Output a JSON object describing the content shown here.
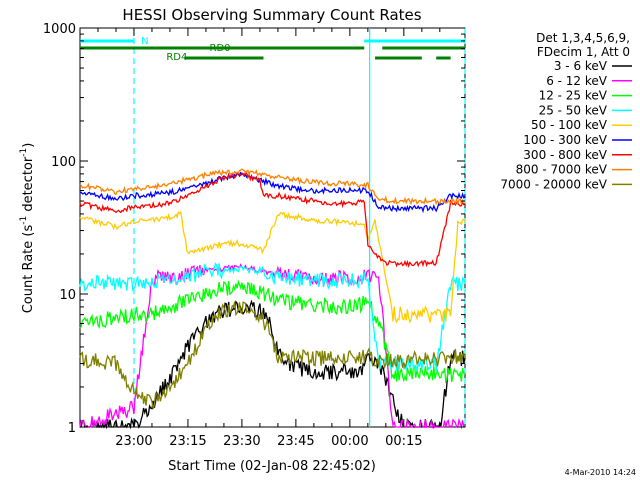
{
  "chart_data": {
    "type": "line",
    "title": "HESSI Observing Summary Count Rates",
    "xlabel": "Start Time (02-Jan-08 22:45:02)",
    "ylabel_main": "Count Rate (s",
    "ylabel_sup1": "-1",
    "ylabel_mid": " detector",
    "ylabel_sup2": "-1",
    "ylabel_end": ")",
    "yscale": "log",
    "ylim": [
      1,
      1000
    ],
    "y_ticks": [
      {
        "value": 1,
        "label": "1"
      },
      {
        "value": 10,
        "label": "10"
      },
      {
        "value": 100,
        "label": "100"
      },
      {
        "value": 1000,
        "label": "1000"
      }
    ],
    "x_range_minutes": [
      -15,
      92
    ],
    "x_ticks": [
      {
        "minute": 0,
        "label": "23:00"
      },
      {
        "minute": 15,
        "label": "23:15"
      },
      {
        "minute": 30,
        "label": "23:30"
      },
      {
        "minute": 45,
        "label": "23:45"
      },
      {
        "minute": 60,
        "label": "00:00"
      },
      {
        "minute": 75,
        "label": "00:15"
      }
    ],
    "legend_header": [
      "Det 1,3,4,5,6,9,",
      "FDecim 1, Att 0"
    ],
    "legend_position": "top-right",
    "annotations": [
      {
        "text": "N",
        "minute": 2,
        "color": "#00ffff"
      },
      {
        "text": "RD0",
        "minute": 21,
        "color": "#008000"
      },
      {
        "text": "RD4",
        "minute": 9,
        "color": "#008000"
      }
    ],
    "footer_date": "4-Mar-2010 14:24",
    "flag_bars": [
      {
        "name": "N",
        "color": "#00ffff",
        "y": 41,
        "segments": [
          [
            -15,
            0
          ],
          [
            64,
            92
          ]
        ]
      },
      {
        "name": "RD0",
        "color": "#008000",
        "y": 48,
        "segments": [
          [
            -15,
            64
          ],
          [
            69,
            92
          ]
        ]
      },
      {
        "name": "RD4",
        "color": "#008000",
        "y": 58,
        "segments": [
          [
            14,
            36
          ]
        ]
      },
      {
        "name": "RD4-late",
        "color": "#008000",
        "y": 58,
        "segments": [
          [
            67,
            80
          ],
          [
            84,
            88
          ]
        ]
      }
    ],
    "vertical_markers": [
      {
        "name": "night-start",
        "minute": 0,
        "color": "#00ffff",
        "style": "dashed"
      },
      {
        "name": "night-end",
        "minute": 65.5,
        "color": "#00ffff",
        "style": "solid"
      },
      {
        "name": "saa",
        "minute": 92,
        "color": "#00ffff",
        "style": "dashed"
      }
    ],
    "series": [
      {
        "name": "3 - 6 keV",
        "color": "#000000",
        "x": [
          -15,
          0,
          5,
          10,
          12,
          15,
          20,
          25,
          30,
          35,
          38,
          40,
          45,
          50,
          55,
          60,
          63,
          65,
          68,
          75,
          80,
          85,
          88,
          92
        ],
        "values": [
          1,
          1,
          1.5,
          2.3,
          3,
          4,
          6,
          7.5,
          8,
          7.5,
          6,
          3.5,
          2.8,
          2.6,
          2.6,
          2.6,
          2.7,
          3.2,
          3.0,
          1,
          1,
          1,
          3.3,
          3.3
        ]
      },
      {
        "name": "6 - 12 keV",
        "color": "#ff00ff",
        "x": [
          -15,
          0,
          5,
          10,
          15,
          20,
          25,
          30,
          35,
          40,
          45,
          50,
          55,
          60,
          64,
          65,
          68,
          72,
          80,
          84,
          88,
          92
        ],
        "values": [
          1,
          1.4,
          13,
          13.5,
          14,
          15,
          15.5,
          16,
          15,
          14,
          13.5,
          13,
          13,
          13,
          13.5,
          14,
          14,
          1,
          1,
          1,
          1,
          1
        ]
      },
      {
        "name": "12 - 25 keV",
        "color": "#00ff00",
        "x": [
          -15,
          0,
          5,
          10,
          15,
          20,
          25,
          30,
          35,
          40,
          45,
          50,
          55,
          60,
          64,
          65,
          68,
          72,
          80,
          84,
          88,
          92
        ],
        "values": [
          6,
          7,
          7,
          8,
          9,
          10,
          11,
          11.5,
          10.5,
          9,
          8.5,
          8.5,
          8,
          8,
          8.5,
          8.5,
          6.5,
          2.5,
          2.5,
          2.5,
          2.5,
          2.5
        ]
      },
      {
        "name": "25 - 50 keV",
        "color": "#00ffff",
        "x": [
          -15,
          0,
          5,
          10,
          15,
          20,
          25,
          30,
          35,
          40,
          45,
          50,
          55,
          60,
          64,
          65,
          68,
          72,
          80,
          84,
          88,
          92
        ],
        "values": [
          12,
          12,
          12.5,
          13,
          13.5,
          14.5,
          15,
          15.5,
          14.5,
          13.5,
          13,
          13,
          12.5,
          12.5,
          13,
          13,
          3,
          3,
          3,
          3,
          12,
          12
        ]
      },
      {
        "name": "50 - 100 keV",
        "color": "#ffcc00",
        "x": [
          -15,
          -5,
          0,
          5,
          10,
          13,
          15,
          20,
          25,
          30,
          35,
          36,
          40,
          45,
          50,
          55,
          60,
          64,
          65,
          67,
          72,
          80,
          84,
          88,
          90,
          92
        ],
        "values": [
          38,
          32,
          35,
          36,
          38,
          40,
          20,
          22,
          24,
          24,
          22,
          21,
          40,
          38,
          36,
          35,
          34,
          34,
          26,
          35,
          7,
          7,
          7,
          7,
          35,
          35
        ]
      },
      {
        "name": "100 - 300 keV",
        "color": "#0000ff",
        "x": [
          -15,
          -5,
          0,
          5,
          10,
          15,
          20,
          25,
          30,
          35,
          40,
          45,
          50,
          55,
          60,
          64,
          65,
          68,
          72,
          80,
          84,
          88,
          92
        ],
        "values": [
          58,
          52,
          55,
          56,
          58,
          62,
          68,
          75,
          80,
          72,
          65,
          62,
          60,
          60,
          60,
          60,
          60,
          46,
          44,
          44,
          44,
          55,
          55
        ]
      },
      {
        "name": "300 - 800 keV",
        "color": "#ff0000",
        "x": [
          -15,
          -5,
          0,
          5,
          10,
          13,
          15,
          20,
          25,
          30,
          35,
          36,
          40,
          45,
          50,
          55,
          60,
          64,
          65,
          67,
          70,
          72,
          80,
          84,
          88,
          92
        ],
        "values": [
          48,
          42,
          45,
          46,
          48,
          52,
          55,
          65,
          75,
          80,
          72,
          55,
          55,
          52,
          50,
          48,
          48,
          50,
          24,
          20,
          17,
          17,
          17,
          17,
          48,
          48
        ]
      },
      {
        "name": "800 - 7000 keV",
        "color": "#ff8000",
        "x": [
          -15,
          -5,
          0,
          5,
          10,
          15,
          20,
          25,
          30,
          35,
          40,
          45,
          50,
          55,
          60,
          64,
          65,
          68,
          72,
          80,
          84,
          88,
          92
        ],
        "values": [
          66,
          58,
          62,
          64,
          68,
          72,
          78,
          82,
          84,
          80,
          76,
          72,
          70,
          68,
          67,
          66,
          66,
          52,
          50,
          50,
          50,
          50,
          50
        ]
      },
      {
        "name": "7000 - 20000 keV",
        "color": "#808000",
        "x": [
          -15,
          -5,
          0,
          5,
          10,
          15,
          20,
          25,
          30,
          35,
          38,
          40,
          45,
          50,
          55,
          60,
          63,
          65,
          68,
          72,
          80,
          84,
          88,
          92
        ],
        "values": [
          3.2,
          3.0,
          1.8,
          1.5,
          2.0,
          3.0,
          5.5,
          7.5,
          8,
          7,
          5,
          3.3,
          3.3,
          3.3,
          3.3,
          3.3,
          3.3,
          3.4,
          3.2,
          3.2,
          3.2,
          3.2,
          3.4,
          3.4
        ]
      }
    ]
  }
}
